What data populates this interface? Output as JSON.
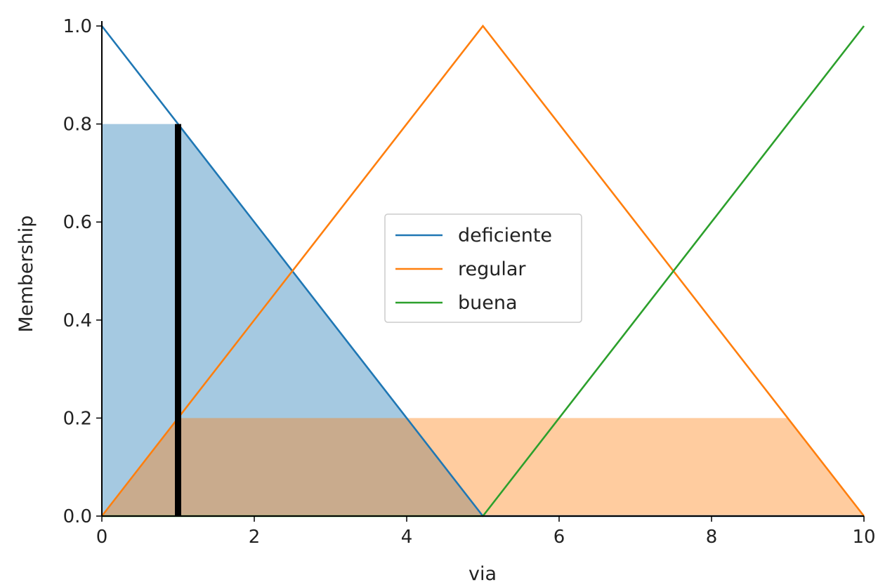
{
  "chart_data": {
    "type": "area",
    "xlabel": "via",
    "ylabel": "Membership",
    "xlim": [
      0,
      10
    ],
    "ylim": [
      0,
      1
    ],
    "xticks": [
      "0",
      "2",
      "4",
      "6",
      "8",
      "10"
    ],
    "yticks": [
      "0.0",
      "0.2",
      "0.4",
      "0.6",
      "0.8",
      "1.0"
    ],
    "grid": false,
    "legend_position": "center",
    "series": [
      {
        "name": "deficiente",
        "color": "#1f77b4",
        "x": [
          0,
          5,
          10
        ],
        "y": [
          1,
          0,
          0
        ]
      },
      {
        "name": "regular",
        "color": "#ff7f0e",
        "x": [
          0,
          5,
          10
        ],
        "y": [
          0,
          1,
          0
        ]
      },
      {
        "name": "buena",
        "color": "#2ca02c",
        "x": [
          0,
          5,
          10
        ],
        "y": [
          0,
          0,
          1
        ]
      }
    ],
    "activations": [
      {
        "series": "deficiente",
        "x": [
          0,
          1,
          5
        ],
        "y": [
          0.8,
          0.8,
          0
        ]
      },
      {
        "series": "regular",
        "x": [
          0,
          1,
          9,
          10
        ],
        "y": [
          0,
          0.2,
          0.2,
          0
        ]
      }
    ],
    "input_marker": {
      "x": 1,
      "y": 0.8,
      "color": "#000000"
    }
  }
}
